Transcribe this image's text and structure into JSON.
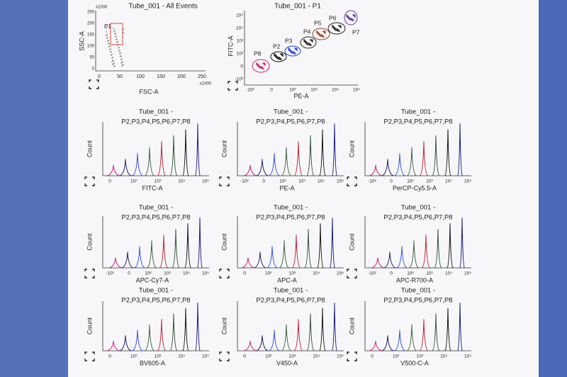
{
  "dot_plots": [
    {
      "title": "Tube_001 - All Events",
      "x_label": "FSC-A",
      "y_label": "SSC-A",
      "x_multiplier": "x1000",
      "y_multiplier": "x1000",
      "x_ticks": [
        "0",
        "50",
        "100",
        "150",
        "200",
        "250"
      ],
      "y_ticks": [
        "0",
        "50",
        "100",
        "150",
        "200",
        "250"
      ],
      "gates": [
        "P1"
      ]
    },
    {
      "title": "Tube_001 - P1",
      "x_label": "PE-A",
      "y_label": "FITC-A",
      "x_ticks": [
        "-10²",
        "0",
        "10²",
        "10³",
        "10⁴",
        "10⁵"
      ],
      "y_ticks": [
        "-10²",
        "0",
        "10²",
        "10³",
        "10⁴",
        "10⁵"
      ],
      "gates": [
        "P8",
        "P2",
        "P3",
        "P4",
        "P5",
        "P6",
        "P7"
      ]
    }
  ],
  "histograms": [
    {
      "title": "Tube_001 -",
      "subtitle": "P2,P3,P4,P5,P6,P7,P8",
      "x_label": "FITC-A",
      "y_label": "Count",
      "x_ticks": [
        "0",
        "10²",
        "10³",
        "10⁴",
        "10⁵"
      ]
    },
    {
      "title": "Tube_001 -",
      "subtitle": "P2,P3,P4,P5,P6,P7,P8",
      "x_label": "PE-A",
      "y_label": "Count",
      "x_ticks": [
        "-10²",
        "0",
        "10²",
        "10³",
        "10⁴",
        "10⁵"
      ]
    },
    {
      "title": "Tube_001 -",
      "subtitle": "P2,P3,P4,P5,P6,P7,P8",
      "x_label": "PerCP-Cy5.5-A",
      "y_label": "Count",
      "x_ticks": [
        "-10²",
        "0",
        "10²",
        "10³",
        "10⁴",
        "10⁵"
      ]
    },
    {
      "title": "Tube_001 -",
      "subtitle": "P2,P3,P4,P5,P6,P7,P8",
      "x_label": "APC-Cy7-A",
      "y_label": "Count",
      "x_ticks": [
        "-10²",
        "0",
        "10²",
        "10³",
        "10⁴",
        "10⁵"
      ]
    },
    {
      "title": "Tube_001 -",
      "subtitle": "P2,P3,P4,P5,P6,P7,P8",
      "x_label": "APC-A",
      "y_label": "Count",
      "x_ticks": [
        "0",
        "10²",
        "10³",
        "10⁴",
        "10⁵"
      ]
    },
    {
      "title": "Tube_001 -",
      "subtitle": "P2,P3,P4,P5,P6,P7,P8",
      "x_label": "APC-R700-A",
      "y_label": "Count",
      "x_ticks": [
        "-10²",
        "0",
        "10²",
        "10³",
        "10⁴",
        "10⁵"
      ]
    },
    {
      "title": "Tube_001 -",
      "subtitle": "P2,P3,P4,P5,P6,P7,P8",
      "x_label": "BV605-A",
      "y_label": "Count",
      "x_ticks": [
        "0",
        "10²",
        "10³",
        "10⁴",
        "10⁵"
      ]
    },
    {
      "title": "Tube_001 -",
      "subtitle": "P2,P3,P4,P5,P6,P7,P8",
      "x_label": "V450-A",
      "y_label": "Count",
      "x_ticks": [
        "0",
        "10²",
        "10³",
        "10⁴",
        "10⁵"
      ]
    },
    {
      "title": "Tube_001 -",
      "subtitle": "P2,P3,P4,P5,P6,P7,P8",
      "x_label": "V500-C-A",
      "y_label": "Count",
      "x_ticks": [
        "0",
        "10²",
        "10³",
        "10⁴",
        "10⁵"
      ]
    }
  ]
}
